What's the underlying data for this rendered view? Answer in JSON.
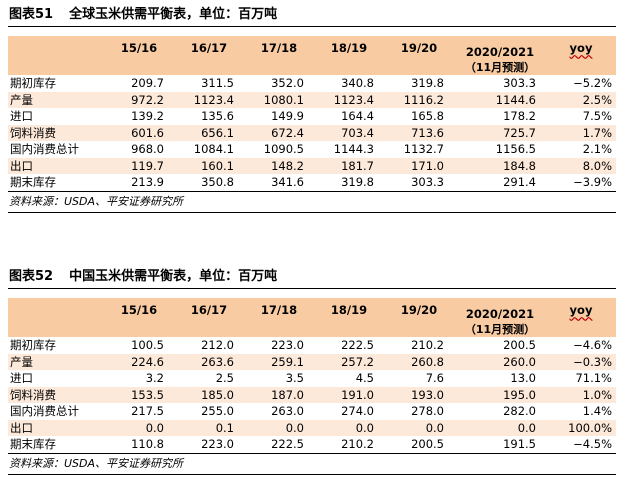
{
  "tables": [
    {
      "figure_label": "图表51",
      "title": "全球玉米供需平衡表，单位：百万吨",
      "headers": [
        "",
        "15/16",
        "16/17",
        "17/18",
        "18/19",
        "19/20",
        "2020/2021",
        "yoy"
      ],
      "subheader": "（11月预测）",
      "rows": [
        [
          "期初库存",
          "209.7",
          "311.5",
          "352.0",
          "340.8",
          "319.8",
          "303.3",
          "−5.2%"
        ],
        [
          "产量",
          "972.2",
          "1123.4",
          "1080.1",
          "1123.4",
          "1116.2",
          "1144.6",
          "2.5%"
        ],
        [
          "进口",
          "139.2",
          "135.6",
          "149.9",
          "164.4",
          "165.8",
          "178.2",
          "7.5%"
        ],
        [
          "饲料消费",
          "601.6",
          "656.1",
          "672.4",
          "703.4",
          "713.6",
          "725.7",
          "1.7%"
        ],
        [
          "国内消费总计",
          "968.0",
          "1084.1",
          "1090.5",
          "1144.3",
          "1132.7",
          "1156.5",
          "2.1%"
        ],
        [
          "出口",
          "119.7",
          "160.1",
          "148.2",
          "181.7",
          "171.0",
          "184.8",
          "8.0%"
        ],
        [
          "期末库存",
          "213.9",
          "350.8",
          "341.6",
          "319.8",
          "303.3",
          "291.4",
          "−3.9%"
        ]
      ],
      "source": "资料来源：USDA、平安证券研究所"
    },
    {
      "figure_label": "图表52",
      "title": "中国玉米供需平衡表，单位：百万吨",
      "headers": [
        "",
        "15/16",
        "16/17",
        "17/18",
        "18/19",
        "19/20",
        "2020/2021",
        "yoy"
      ],
      "subheader": "（11月预测）",
      "rows": [
        [
          "期初库存",
          "100.5",
          "212.0",
          "223.0",
          "222.5",
          "210.2",
          "200.5",
          "−4.6%"
        ],
        [
          "产量",
          "224.6",
          "263.6",
          "259.1",
          "257.2",
          "260.8",
          "260.0",
          "−0.3%"
        ],
        [
          "进口",
          "3.2",
          "2.5",
          "3.5",
          "4.5",
          "7.6",
          "13.0",
          "71.1%"
        ],
        [
          "饲料消费",
          "153.5",
          "185.0",
          "187.0",
          "191.0",
          "193.0",
          "195.0",
          "1.0%"
        ],
        [
          "国内消费总计",
          "217.5",
          "255.0",
          "263.0",
          "274.0",
          "278.0",
          "282.0",
          "1.4%"
        ],
        [
          "出口",
          "0.0",
          "0.1",
          "0.0",
          "0.0",
          "0.0",
          "0.0",
          "100.0%"
        ],
        [
          "期末库存",
          "110.8",
          "223.0",
          "222.5",
          "210.2",
          "200.5",
          "191.5",
          "−4.5%"
        ]
      ],
      "source": "资料来源：USDA、平安证券研究所"
    }
  ]
}
